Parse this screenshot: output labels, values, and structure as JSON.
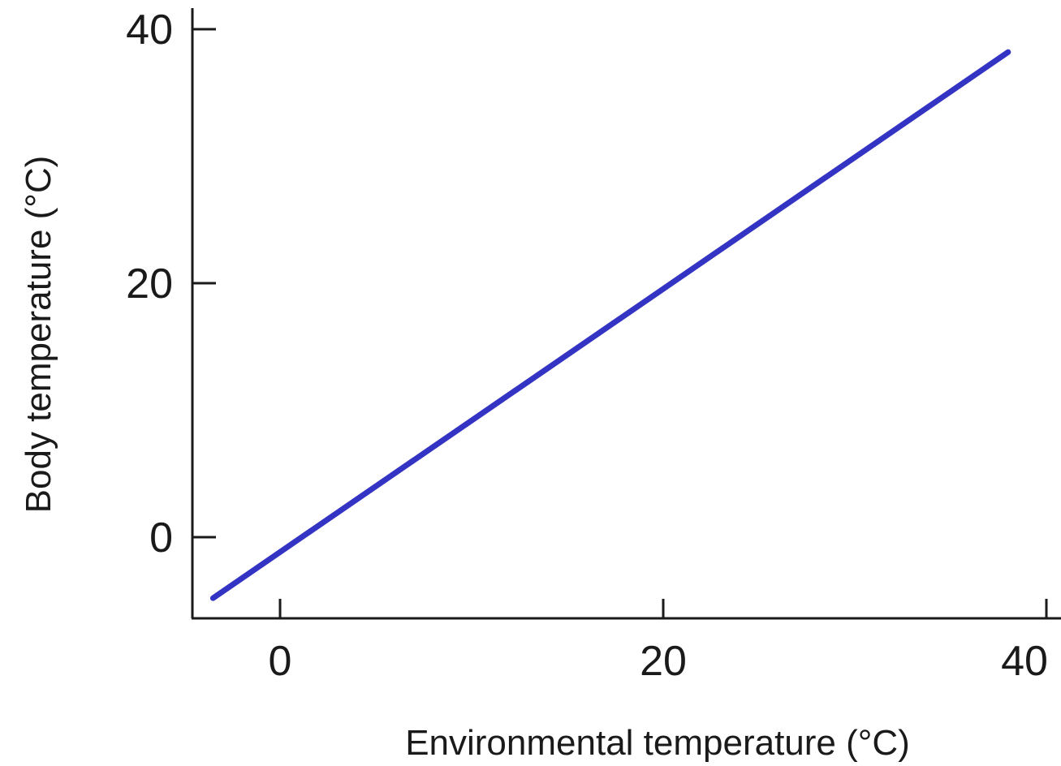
{
  "chart_data": {
    "type": "line",
    "title": "",
    "xlabel": "Environmental temperature (°C)",
    "ylabel": "Body temperature (°C)",
    "xlim": [
      -4,
      40
    ],
    "ylim": [
      -4,
      40
    ],
    "x_ticks": [
      "0",
      "20",
      "40"
    ],
    "y_ticks": [
      "0",
      "20",
      "40"
    ],
    "series": [
      {
        "color": "#3333c4",
        "x": [
          -3.5,
          38
        ],
        "y": [
          -4.8,
          38.2
        ]
      }
    ],
    "grid": false,
    "legend": "none"
  }
}
